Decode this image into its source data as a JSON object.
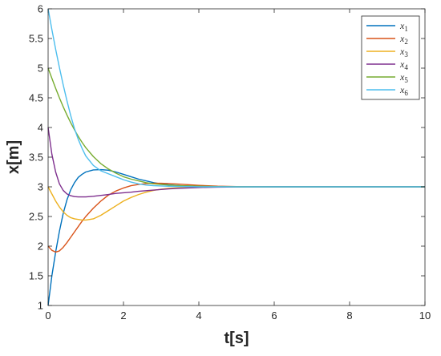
{
  "chart_data": {
    "type": "line",
    "xlabel": "t[s]",
    "ylabel": "x[m]",
    "xlim": [
      0,
      10
    ],
    "ylim": [
      1,
      6
    ],
    "xticks": [
      "0",
      "2",
      "4",
      "6",
      "8",
      "10"
    ],
    "yticks": [
      "1",
      "1.5",
      "2",
      "2.5",
      "3",
      "3.5",
      "4",
      "4.5",
      "5",
      "5.5",
      "6"
    ],
    "grid": false,
    "legend": "top-right",
    "x": [
      0,
      0.1,
      0.2,
      0.3,
      0.4,
      0.5,
      0.6,
      0.7,
      0.8,
      0.9,
      1.0,
      1.2,
      1.4,
      1.6,
      1.8,
      2.0,
      2.2,
      2.4,
      2.6,
      2.8,
      3.0,
      3.2,
      3.5,
      4.0,
      4.5,
      5.0,
      6.0,
      7.0,
      8.0,
      9.0,
      10.0
    ],
    "series": [
      {
        "name": "x1",
        "sub": "1",
        "color": "#0072BD",
        "values": [
          1.0,
          1.5,
          1.9,
          2.25,
          2.55,
          2.78,
          2.95,
          3.07,
          3.16,
          3.21,
          3.25,
          3.285,
          3.29,
          3.28,
          3.25,
          3.21,
          3.17,
          3.13,
          3.1,
          3.07,
          3.05,
          3.035,
          3.02,
          3.008,
          3.003,
          3.001,
          3.0,
          3.0,
          3.0,
          3.0,
          3.0
        ]
      },
      {
        "name": "x2",
        "sub": "2",
        "color": "#D95319",
        "values": [
          2.0,
          1.93,
          1.9,
          1.92,
          1.98,
          2.06,
          2.15,
          2.24,
          2.33,
          2.42,
          2.5,
          2.64,
          2.76,
          2.86,
          2.93,
          2.98,
          3.02,
          3.04,
          3.055,
          3.06,
          3.06,
          3.055,
          3.045,
          3.025,
          3.01,
          3.004,
          3.0,
          3.0,
          3.0,
          3.0,
          3.0
        ]
      },
      {
        "name": "x3",
        "sub": "3",
        "color": "#EDB120",
        "values": [
          3.0,
          2.88,
          2.76,
          2.66,
          2.58,
          2.52,
          2.48,
          2.46,
          2.45,
          2.44,
          2.44,
          2.46,
          2.52,
          2.6,
          2.68,
          2.76,
          2.82,
          2.87,
          2.91,
          2.94,
          2.96,
          2.975,
          2.985,
          2.995,
          2.998,
          3.0,
          3.0,
          3.0,
          3.0,
          3.0,
          3.0
        ]
      },
      {
        "name": "x4",
        "sub": "4",
        "color": "#7E2F8E",
        "values": [
          4.0,
          3.55,
          3.25,
          3.05,
          2.94,
          2.88,
          2.85,
          2.835,
          2.83,
          2.83,
          2.83,
          2.84,
          2.855,
          2.87,
          2.89,
          2.9,
          2.91,
          2.925,
          2.935,
          2.945,
          2.955,
          2.965,
          2.975,
          2.988,
          2.995,
          2.998,
          3.0,
          3.0,
          3.0,
          3.0,
          3.0
        ]
      },
      {
        "name": "x5",
        "sub": "5",
        "color": "#77AC30",
        "values": [
          5.0,
          4.83,
          4.66,
          4.5,
          4.35,
          4.21,
          4.08,
          3.96,
          3.85,
          3.75,
          3.66,
          3.51,
          3.39,
          3.3,
          3.23,
          3.17,
          3.13,
          3.1,
          3.07,
          3.05,
          3.04,
          3.03,
          3.02,
          3.01,
          3.004,
          3.0,
          3.0,
          3.0,
          3.0,
          3.0,
          3.0
        ]
      },
      {
        "name": "x6",
        "sub": "6",
        "color": "#4DBEEE",
        "values": [
          6.0,
          5.65,
          5.32,
          5.01,
          4.72,
          4.45,
          4.2,
          3.98,
          3.8,
          3.65,
          3.52,
          3.36,
          3.27,
          3.22,
          3.17,
          3.12,
          3.08,
          3.05,
          3.03,
          3.02,
          3.015,
          3.01,
          3.005,
          3.0,
          3.0,
          3.0,
          3.0,
          3.0,
          3.0,
          3.0,
          3.0
        ]
      }
    ]
  }
}
